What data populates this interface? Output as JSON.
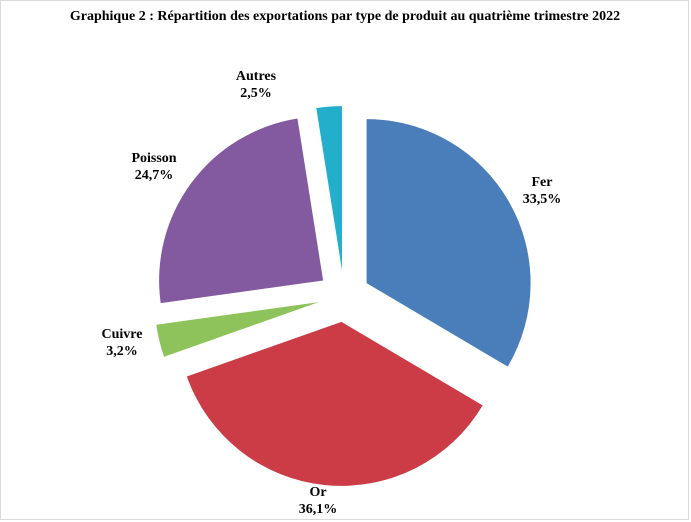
{
  "chart_data": {
    "type": "pie",
    "title": "Graphique  2 : Répartition des exportations par type de produit au quatrième trimestre  2022",
    "slices": [
      {
        "label": "Fer",
        "value": 33.5,
        "value_label": "33,5%",
        "color": "#4a7ebb"
      },
      {
        "label": "Or",
        "value": 36.1,
        "value_label": "36,1%",
        "color": "#cb3c46"
      },
      {
        "label": "Cuivre",
        "value": 3.2,
        "value_label": "3,2%",
        "color": "#8dc35a"
      },
      {
        "label": "Poisson",
        "value": 24.7,
        "value_label": "24,7%",
        "color": "#8359a0"
      },
      {
        "label": "Autres",
        "value": 2.5,
        "value_label": "2,5%",
        "color": "#23aecb"
      }
    ],
    "exploded": true,
    "legend": "none"
  }
}
